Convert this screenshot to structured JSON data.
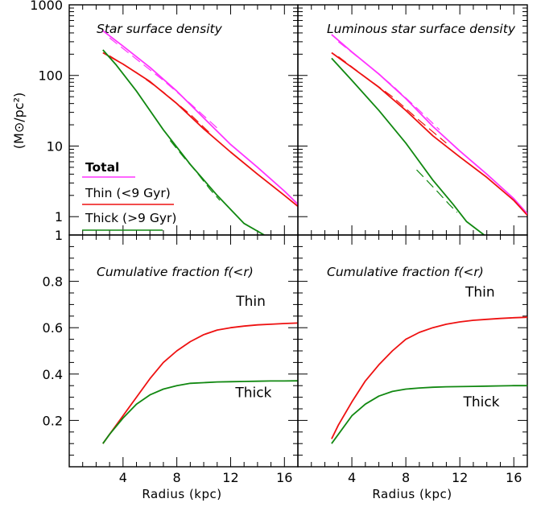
{
  "colors": {
    "total": "#ff33ff",
    "thin": "#ee1111",
    "thick": "#118811",
    "axis": "#000000"
  },
  "axes_labels": {
    "ylabel": "(M⊙/pc²)",
    "xlabel": "Radius (kpc)"
  },
  "chart_data": [
    {
      "id": "star-surface-density",
      "type": "line",
      "title": "Star surface density",
      "xlabel": "",
      "ylabel": "(M⊙/pc²)",
      "xlim": [
        0,
        17
      ],
      "ylim": [
        0.55,
        1000
      ],
      "yscale": "log",
      "yticks": [
        1,
        10,
        100,
        1000
      ],
      "ytick_labels": [
        "1",
        "10",
        "100",
        "1000"
      ],
      "legend": [
        "Total",
        "Thin (<9 Gyr)",
        "Thick (>9 Gyr)"
      ],
      "legend_position": "bottom-left",
      "series": [
        {
          "name": "Total",
          "color": "total",
          "x": [
            2.5,
            4,
            6,
            8,
            10,
            12,
            14,
            16,
            17
          ],
          "y": [
            430,
            260,
            130,
            60,
            25,
            10.5,
            5,
            2.3,
            1.5
          ]
        },
        {
          "name": "Thin (<9 Gyr)",
          "color": "thin",
          "x": [
            2.5,
            4,
            6,
            8,
            10,
            12,
            14,
            16,
            17
          ],
          "y": [
            210,
            145,
            82,
            40,
            17.5,
            8.2,
            4,
            2,
            1.4
          ]
        },
        {
          "name": "Thick (>9 Gyr)",
          "color": "thick",
          "x": [
            2.5,
            3.5,
            5,
            7,
            9,
            11,
            13,
            14.5
          ],
          "y": [
            230,
            140,
            60,
            17,
            5.5,
            2,
            0.8,
            0.55
          ]
        }
      ],
      "dashed_series": [
        {
          "color": "total",
          "x": [
            3,
            5,
            7,
            9,
            11
          ],
          "y": [
            340,
            170,
            85,
            40,
            18
          ]
        },
        {
          "color": "thin",
          "x": [
            3,
            5,
            7,
            9,
            10.5
          ],
          "y": [
            190,
            110,
            58,
            28,
            15
          ]
        },
        {
          "color": "thick",
          "x": [
            7.5,
            8.5,
            9.5,
            10.5,
            11.2
          ],
          "y": [
            12,
            7,
            4.2,
            2.4,
            1.7
          ]
        }
      ]
    },
    {
      "id": "luminous-star-surface-density",
      "type": "line",
      "title": "Luminous star surface density",
      "xlabel": "",
      "ylabel": "",
      "xlim": [
        0,
        17
      ],
      "ylim": [
        0.55,
        1000
      ],
      "yscale": "log",
      "series": [
        {
          "name": "Total",
          "color": "total",
          "x": [
            2.5,
            4,
            6,
            8,
            10,
            12,
            14,
            16,
            17
          ],
          "y": [
            380,
            215,
            105,
            47,
            19,
            8.5,
            4,
            1.8,
            1.1
          ]
        },
        {
          "name": "Thin (<9 Gyr)",
          "color": "thin",
          "x": [
            2.5,
            4,
            6,
            8,
            10,
            12,
            14,
            16,
            17
          ],
          "y": [
            210,
            130,
            68,
            32,
            14,
            7,
            3.6,
            1.7,
            1.05
          ]
        },
        {
          "name": "Thick (>9 Gyr)",
          "color": "thick",
          "x": [
            2.5,
            4,
            6,
            8,
            10,
            11.5,
            12.5,
            13.8
          ],
          "y": [
            175,
            85,
            32,
            11,
            3.3,
            1.5,
            0.85,
            0.55
          ]
        }
      ],
      "dashed_series": [
        {
          "color": "total",
          "x": [
            3,
            5,
            7,
            9,
            10.5
          ],
          "y": [
            300,
            150,
            72,
            32,
            17
          ]
        },
        {
          "color": "thin",
          "x": [
            3,
            5,
            7,
            9,
            11
          ],
          "y": [
            185,
            95,
            50,
            23,
            11
          ]
        },
        {
          "color": "thick",
          "x": [
            8.8,
            9.6,
            10.4,
            11.2,
            11.8
          ],
          "y": [
            4.6,
            3.2,
            2.2,
            1.5,
            1.15
          ]
        }
      ]
    },
    {
      "id": "cumulative-fraction-left",
      "type": "line",
      "title": "Cumulative fraction f(<r)",
      "xlabel": "Radius (kpc)",
      "ylabel": "",
      "xlim": [
        0,
        17
      ],
      "ylim": [
        0,
        1
      ],
      "xticks": [
        4,
        8,
        12,
        16
      ],
      "xtick_labels": [
        "4",
        "8",
        "12",
        "16"
      ],
      "yticks": [
        0.2,
        0.4,
        0.6,
        0.8,
        1
      ],
      "ytick_labels": [
        "0.2",
        "0.4",
        "0.6",
        "0.8",
        "1"
      ],
      "annotations": [
        {
          "text": "Thin",
          "color": "thin",
          "x": 13.5,
          "y": 0.695
        },
        {
          "text": "Thick",
          "color": "thick",
          "x": 13.7,
          "y": 0.3
        }
      ],
      "series": [
        {
          "name": "Thin",
          "color": "thin",
          "x": [
            2.5,
            3,
            4,
            5,
            6,
            7,
            8,
            9,
            10,
            11,
            12,
            13,
            14,
            15,
            16,
            17
          ],
          "y": [
            0.1,
            0.14,
            0.22,
            0.3,
            0.38,
            0.45,
            0.5,
            0.54,
            0.57,
            0.59,
            0.6,
            0.607,
            0.612,
            0.615,
            0.618,
            0.62
          ]
        },
        {
          "name": "Thick",
          "color": "thick",
          "x": [
            2.5,
            3,
            4,
            5,
            6,
            7,
            8,
            9,
            10,
            11,
            12,
            13,
            14,
            15,
            16,
            17
          ],
          "y": [
            0.1,
            0.14,
            0.21,
            0.27,
            0.31,
            0.335,
            0.35,
            0.36,
            0.363,
            0.366,
            0.367,
            0.368,
            0.369,
            0.37,
            0.37,
            0.371
          ]
        }
      ]
    },
    {
      "id": "cumulative-fraction-right",
      "type": "line",
      "title": "Cumulative fraction f(<r)",
      "xlabel": "Radius (kpc)",
      "ylabel": "",
      "xlim": [
        0,
        17
      ],
      "ylim": [
        0,
        1
      ],
      "xticks": [
        4,
        8,
        12,
        16
      ],
      "xtick_labels": [
        "4",
        "8",
        "12",
        "16"
      ],
      "annotations": [
        {
          "text": "Thin",
          "color": "thin",
          "x": 13.5,
          "y": 0.735
        },
        {
          "text": "Thick",
          "color": "thick",
          "x": 13.6,
          "y": 0.26
        }
      ],
      "series": [
        {
          "name": "Thin",
          "color": "thin",
          "x": [
            2.5,
            3,
            4,
            5,
            6,
            7,
            8,
            9,
            10,
            11,
            12,
            13,
            14,
            15,
            16,
            17
          ],
          "y": [
            0.12,
            0.18,
            0.28,
            0.37,
            0.44,
            0.5,
            0.55,
            0.58,
            0.6,
            0.615,
            0.625,
            0.632,
            0.636,
            0.64,
            0.643,
            0.645
          ]
        },
        {
          "name": "Thick",
          "color": "thick",
          "x": [
            2.5,
            3,
            4,
            5,
            6,
            7,
            8,
            9,
            10,
            11,
            12,
            13,
            14,
            15,
            16,
            17
          ],
          "y": [
            0.1,
            0.14,
            0.22,
            0.27,
            0.305,
            0.325,
            0.335,
            0.34,
            0.343,
            0.345,
            0.346,
            0.347,
            0.348,
            0.349,
            0.35,
            0.35
          ]
        }
      ]
    }
  ]
}
